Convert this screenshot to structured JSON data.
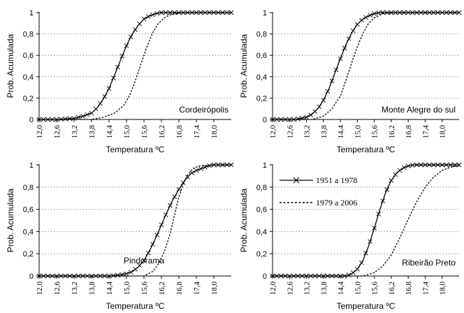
{
  "charts": [
    {
      "type": "line",
      "station": "Cordeirópolis",
      "xlabel": "Temperatura ºC",
      "ylabel": "Prob. Acumulada",
      "x_ticks": [
        "12,0",
        "12,6",
        "13,2",
        "13,8",
        "14,4",
        "15,0",
        "15,6",
        "16,2",
        "16,8",
        "17,4",
        "18,0"
      ],
      "y_ticks": [
        "0",
        "0,2",
        "0,4",
        "0,6",
        "0,8",
        "1"
      ],
      "xlim": [
        12.0,
        18.6
      ],
      "ylim": [
        0,
        1
      ],
      "grid": "horizontal dotted",
      "series": [
        {
          "style": "solid-x",
          "x": [
            12.0,
            12.6,
            13.2,
            13.5,
            13.8,
            14.0,
            14.2,
            14.4,
            14.6,
            14.8,
            15.0,
            15.2,
            15.4,
            15.6,
            15.8,
            16.0,
            16.2,
            16.5,
            16.8,
            17.4,
            18.0,
            18.6
          ],
          "y": [
            0.0,
            0.0,
            0.01,
            0.03,
            0.06,
            0.11,
            0.19,
            0.29,
            0.42,
            0.56,
            0.69,
            0.8,
            0.88,
            0.94,
            0.97,
            0.99,
            1.0,
            1.0,
            1.0,
            1.0,
            1.0,
            1.0
          ]
        },
        {
          "style": "dashed",
          "x": [
            12.0,
            13.8,
            14.2,
            14.6,
            14.9,
            15.1,
            15.3,
            15.5,
            15.7,
            15.9,
            16.1,
            16.3,
            16.5,
            16.8,
            17.2,
            18.6
          ],
          "y": [
            0.0,
            0.0,
            0.02,
            0.06,
            0.13,
            0.22,
            0.36,
            0.52,
            0.68,
            0.81,
            0.9,
            0.95,
            0.98,
            0.995,
            1.0,
            1.0
          ]
        }
      ]
    },
    {
      "type": "line",
      "station": "Monte Alegre do sul",
      "xlabel": "Temperatura ºC",
      "ylabel": "Prob. Acumulada",
      "x_ticks": [
        "12,0",
        "12,6",
        "13,2",
        "13,8",
        "14,4",
        "15,0",
        "15,6",
        "16,2",
        "16,8",
        "17,4",
        "18,0"
      ],
      "y_ticks": [
        "0",
        "0,2",
        "0,4",
        "0,6",
        "0,8",
        "1"
      ],
      "xlim": [
        12.0,
        18.6
      ],
      "ylim": [
        0,
        1
      ],
      "grid": "horizontal dotted",
      "series": [
        {
          "style": "solid-x",
          "x": [
            12.0,
            12.8,
            13.2,
            13.4,
            13.6,
            13.8,
            14.0,
            14.2,
            14.4,
            14.6,
            14.8,
            15.0,
            15.2,
            15.4,
            15.6,
            15.8,
            16.0,
            16.4,
            17.0,
            18.6
          ],
          "y": [
            0.0,
            0.0,
            0.02,
            0.05,
            0.1,
            0.18,
            0.29,
            0.43,
            0.57,
            0.7,
            0.81,
            0.89,
            0.94,
            0.97,
            0.99,
            1.0,
            1.0,
            1.0,
            1.0,
            1.0
          ]
        },
        {
          "style": "dashed",
          "x": [
            12.0,
            13.4,
            13.8,
            14.1,
            14.4,
            14.6,
            14.8,
            15.0,
            15.2,
            15.4,
            15.6,
            15.9,
            16.3,
            17.0,
            18.6
          ],
          "y": [
            0.0,
            0.0,
            0.03,
            0.1,
            0.22,
            0.37,
            0.53,
            0.68,
            0.81,
            0.9,
            0.95,
            0.99,
            1.0,
            1.0,
            1.0
          ]
        }
      ]
    },
    {
      "type": "line",
      "station": "Pindorama",
      "xlabel": "Temperatura ºC",
      "ylabel": "Prob. Acumulada",
      "x_ticks": [
        "12,0",
        "12,6",
        "13,2",
        "13,8",
        "14,4",
        "15,0",
        "15,6",
        "16,2",
        "16,8",
        "17,4",
        "18,0"
      ],
      "y_ticks": [
        "0",
        "0,2",
        "0,4",
        "0,6",
        "0,8",
        "1"
      ],
      "xlim": [
        12.0,
        18.6
      ],
      "ylim": [
        0,
        1
      ],
      "grid": "horizontal dotted",
      "series": [
        {
          "style": "solid-x",
          "x": [
            12.0,
            14.4,
            14.8,
            15.0,
            15.2,
            15.4,
            15.6,
            15.8,
            16.0,
            16.2,
            16.4,
            16.6,
            16.8,
            17.0,
            17.2,
            17.4,
            17.6,
            17.8,
            18.0,
            18.3,
            18.6
          ],
          "y": [
            0.0,
            0.0,
            0.01,
            0.02,
            0.04,
            0.08,
            0.14,
            0.23,
            0.34,
            0.46,
            0.58,
            0.69,
            0.78,
            0.86,
            0.92,
            0.95,
            0.97,
            0.99,
            1.0,
            1.0,
            1.0
          ]
        },
        {
          "style": "dashed",
          "x": [
            12.0,
            15.6,
            15.9,
            16.1,
            16.3,
            16.5,
            16.65,
            16.8,
            16.95,
            17.1,
            17.3,
            17.5,
            18.0,
            18.6
          ],
          "y": [
            0.0,
            0.0,
            0.04,
            0.11,
            0.22,
            0.38,
            0.55,
            0.71,
            0.83,
            0.91,
            0.97,
            0.99,
            1.0,
            1.0
          ]
        }
      ]
    },
    {
      "type": "line",
      "station": "Ribeirão Preto",
      "xlabel": "Temperatura ºC",
      "ylabel": "Prob. Acumulada",
      "x_ticks": [
        "12,0",
        "12,6",
        "13,2",
        "13,8",
        "14,4",
        "15,0",
        "15,6",
        "16,2",
        "16,8",
        "17,4",
        "18,0"
      ],
      "y_ticks": [
        "0",
        "0,2",
        "0,4",
        "0,6",
        "0,8",
        "1"
      ],
      "xlim": [
        12.0,
        18.6
      ],
      "ylim": [
        0,
        1
      ],
      "grid": "horizontal dotted",
      "legend_placement": "top-left",
      "series": [
        {
          "name": "1951 a 1978",
          "style": "solid-x",
          "x": [
            12.0,
            14.6,
            14.8,
            15.0,
            15.2,
            15.4,
            15.6,
            15.8,
            16.0,
            16.2,
            16.4,
            16.6,
            16.8,
            17.0,
            17.4,
            18.0,
            18.6
          ],
          "y": [
            0.0,
            0.0,
            0.02,
            0.06,
            0.14,
            0.27,
            0.43,
            0.6,
            0.75,
            0.86,
            0.93,
            0.97,
            0.99,
            1.0,
            1.0,
            1.0,
            1.0
          ]
        },
        {
          "name": "1979 a 2006",
          "style": "dashed",
          "x": [
            12.0,
            15.2,
            15.6,
            15.9,
            16.2,
            16.5,
            16.8,
            17.1,
            17.4,
            17.7,
            18.0,
            18.3,
            18.6
          ],
          "y": [
            0.0,
            0.0,
            0.03,
            0.09,
            0.19,
            0.34,
            0.51,
            0.67,
            0.8,
            0.89,
            0.95,
            0.98,
            0.99
          ]
        }
      ]
    }
  ]
}
